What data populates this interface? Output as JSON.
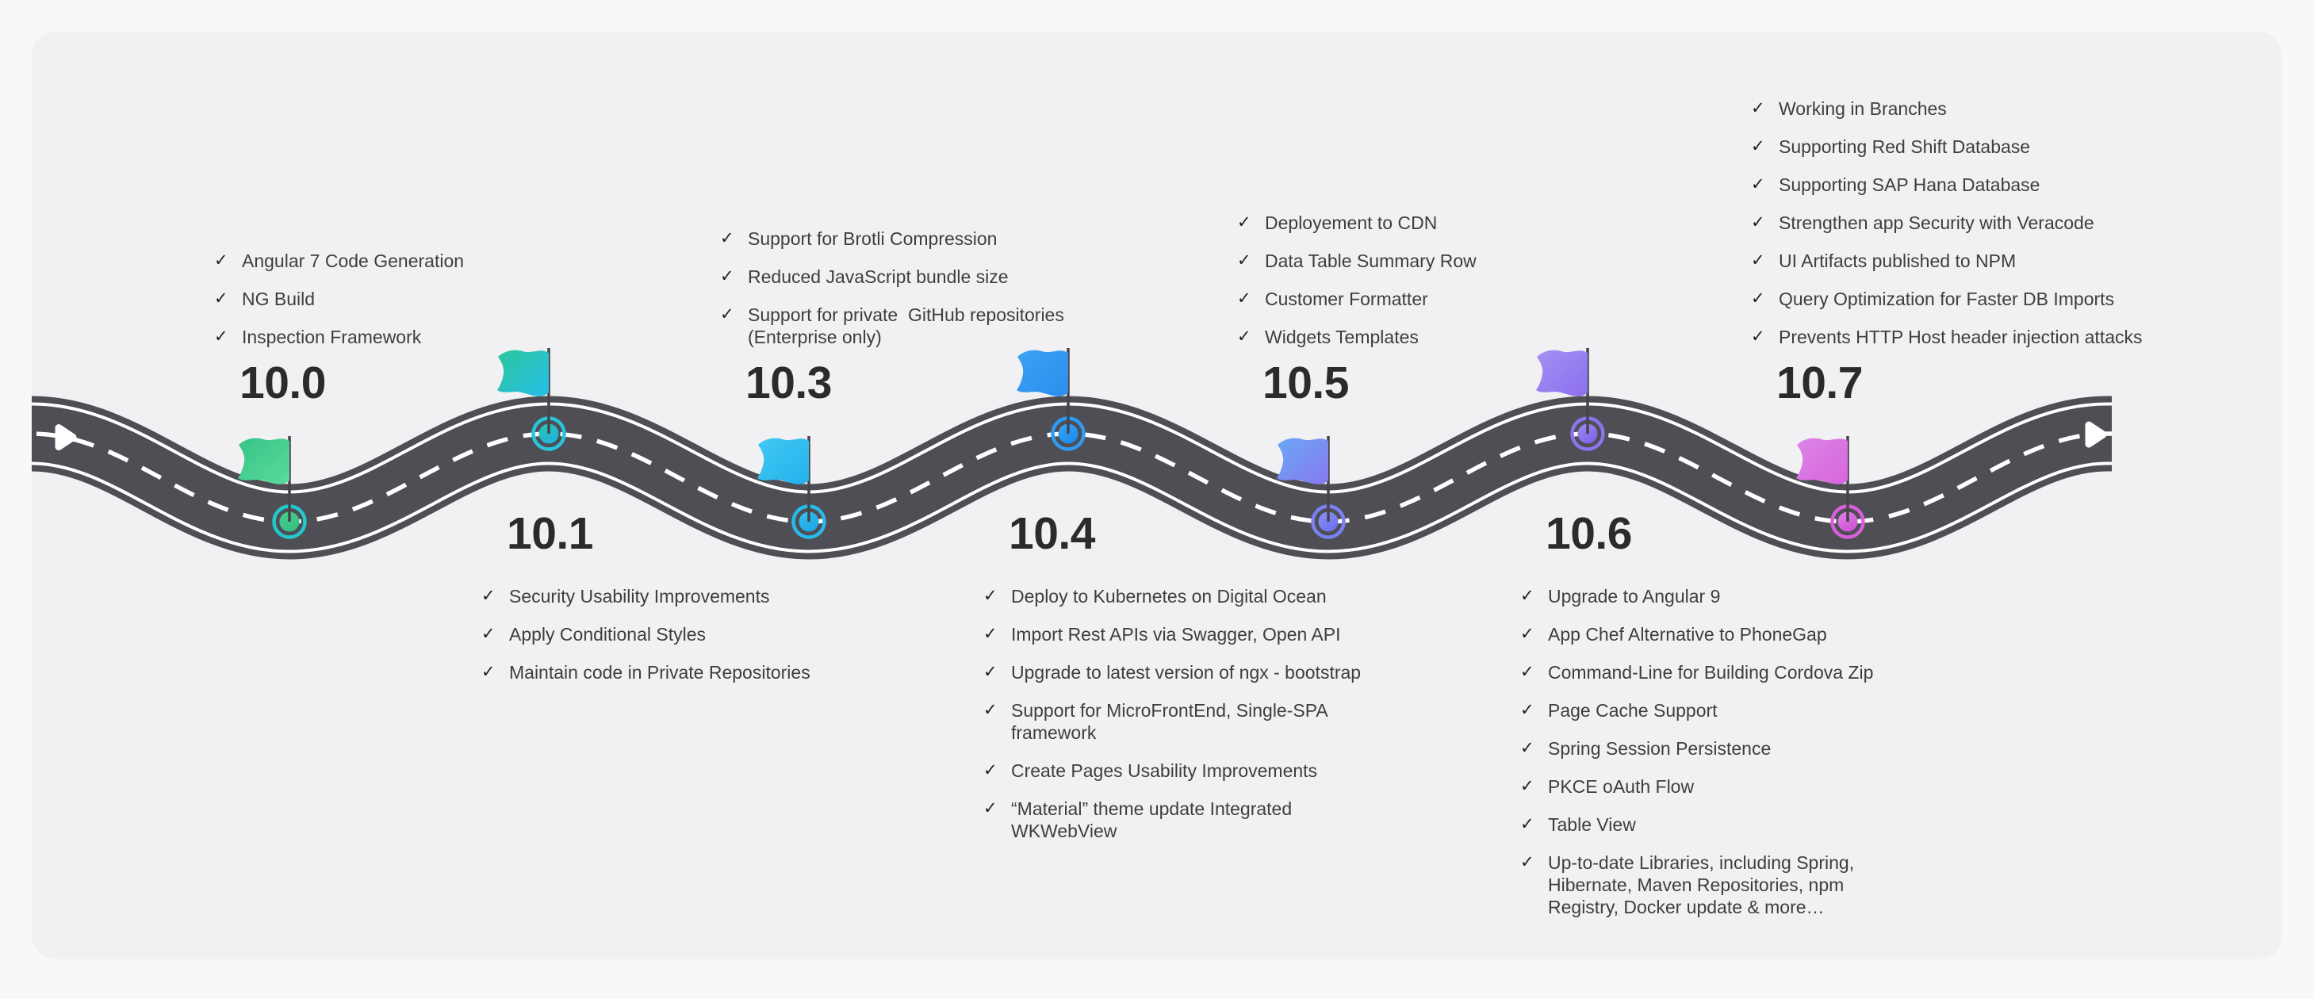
{
  "ui": {
    "check_icon": "✓",
    "background_color": "#f8f8f9",
    "panel_color": "#f1f1f3",
    "road_color": "#4e4e54",
    "road_line_color": "#ffffff",
    "pole_color": "#46464a",
    "text_color": "#3e3e3e",
    "label_color": "#2b2b2b"
  },
  "versions": [
    {
      "label": "10.0",
      "flag_gradient": {
        "from": "#36c487",
        "to": "#5cda9d"
      },
      "ring_color": "#23c8cd",
      "dot_gradient": {
        "from": "#4ccd90",
        "to": "#35c185"
      },
      "features": [
        "Angular 7 Code Generation",
        "NG Build",
        "Inspection Framework"
      ]
    },
    {
      "label": "10.1",
      "flag_gradient": {
        "from": "#2cc69b",
        "to": "#27bfe9"
      },
      "ring_color": "#29c5db",
      "dot_gradient": {
        "from": "#2dc6b4",
        "to": "#1fb3dd"
      },
      "features": [
        "Security Usability Improvements",
        "Apply Conditional Styles",
        "Maintain code in Private Repositories"
      ]
    },
    {
      "label": "10.3",
      "flag_gradient": {
        "from": "#40c9f2",
        "to": "#25b1ec"
      },
      "ring_color": "#28b9ea",
      "dot_gradient": {
        "from": "#36c1f0",
        "to": "#1ea7e6"
      },
      "features": [
        "Support for Brotli Compression",
        "Reduced JavaScript bundle size",
        "Support for private  GitHub repositories\n(Enterprise only)"
      ]
    },
    {
      "label": "10.4",
      "flag_gradient": {
        "from": "#3ba3f3",
        "to": "#2b8eee"
      },
      "ring_color": "#2f9bf3",
      "dot_gradient": {
        "from": "#3aa5f4",
        "to": "#1b8def"
      },
      "features": [
        "Deploy to Kubernetes on Digital Ocean",
        "Import Rest APIs via Swagger, Open API",
        "Upgrade to latest version of ngx - bootstrap",
        "Support for MicroFrontEnd, Single-SPA\nframework",
        "Create Pages Usability Improvements",
        "“Material” theme update Integrated\nWKWebView"
      ]
    },
    {
      "label": "10.5",
      "flag_gradient": {
        "from": "#6ca7f5",
        "to": "#8679f0"
      },
      "ring_color": "#7a80f2",
      "dot_gradient": {
        "from": "#8a92f4",
        "to": "#6e73ee"
      },
      "features": [
        "Deployement to CDN",
        "Data Table Summary Row",
        "Customer Formatter",
        "Widgets Templates"
      ]
    },
    {
      "label": "10.6",
      "flag_gradient": {
        "from": "#a391f3",
        "to": "#8c6fee"
      },
      "ring_color": "#8c75ec",
      "dot_gradient": {
        "from": "#9d89f2",
        "to": "#8263e8"
      },
      "features": [
        "Upgrade to Angular 9",
        "App Chef Alternative to PhoneGap",
        "Command-Line for Building Cordova Zip",
        "Page Cache Support",
        "Spring Session Persistence",
        "PKCE oAuth Flow",
        "Table View",
        "Up-to-date Libraries, including Spring,\nHibernate, Maven Repositories, npm\nRegistry, Docker update & more…"
      ]
    },
    {
      "label": "10.7",
      "flag_gradient": {
        "from": "#db85e7",
        "to": "#d865dd"
      },
      "ring_color": "#d75fd8",
      "dot_gradient": {
        "from": "#e383e6",
        "to": "#ce54d5"
      },
      "features": [
        "Working in Branches",
        "Supporting Red Shift Database",
        "Supporting SAP Hana Database",
        "Strengthen app Security with Veracode",
        "UI Artifacts published to NPM",
        "Query Optimization for Faster DB Imports",
        "Prevents HTTP Host header injection attacks"
      ]
    }
  ]
}
